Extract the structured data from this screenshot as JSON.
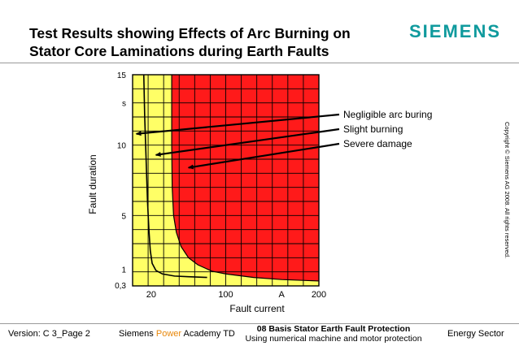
{
  "header": {
    "title_line1": "Test Results showing Effects of Arc Burning on",
    "title_line2": "Stator Core Laminations during Earth Faults",
    "logo": "SIEMENS",
    "logo_color": "#0f9a9d"
  },
  "chart_data": {
    "type": "area",
    "xlabel": "Fault current",
    "ylabel": "Fault duration",
    "xlim": [
      0,
      200
    ],
    "ylim": [
      0,
      15
    ],
    "x_ticks": [
      {
        "label": "20",
        "value": 20
      },
      {
        "label": "100",
        "value": 100
      },
      {
        "label": "A",
        "value": 160
      },
      {
        "label": "200",
        "value": 200
      }
    ],
    "y_ticks": [
      {
        "label": "15",
        "value": 15
      },
      {
        "label": "s",
        "value": 13
      },
      {
        "label": "10",
        "value": 10
      },
      {
        "label": "5",
        "value": 5
      },
      {
        "label": "1",
        "value": 1
      },
      {
        "label": "0,3",
        "value": 0.3
      }
    ],
    "grid": true,
    "regions": [
      {
        "name": "Negligible arc buring",
        "color": "#ffff66"
      },
      {
        "name": "Slight burning",
        "color": "#ffff66"
      },
      {
        "name": "Severe damage",
        "color": "#ff1a1a"
      }
    ],
    "curves": [
      {
        "name": "Negligible arc buring",
        "points": [
          [
            12,
            15
          ],
          [
            13,
            12
          ],
          [
            14,
            10
          ],
          [
            15,
            8
          ],
          [
            16,
            6
          ],
          [
            17.5,
            4
          ],
          [
            19,
            2.5
          ],
          [
            21,
            1.6
          ],
          [
            25,
            1.1
          ],
          [
            32,
            0.85
          ],
          [
            45,
            0.7
          ],
          [
            60,
            0.65
          ],
          [
            80,
            0.6
          ]
        ]
      },
      {
        "name": "Severe damage",
        "points": [
          [
            42,
            15
          ],
          [
            42,
            10
          ],
          [
            42.5,
            7
          ],
          [
            44,
            5
          ],
          [
            47,
            3.8
          ],
          [
            52,
            2.8
          ],
          [
            60,
            2.0
          ],
          [
            70,
            1.5
          ],
          [
            85,
            1.05
          ],
          [
            100,
            0.85
          ],
          [
            130,
            0.6
          ],
          [
            160,
            0.45
          ],
          [
            200,
            0.35
          ]
        ]
      }
    ],
    "annotations": [
      {
        "text": "Negligible arc buring",
        "target": [
          4,
          10.8
        ]
      },
      {
        "text": "Slight burning",
        "target": [
          25,
          9.3
        ]
      },
      {
        "text": "Severe damage",
        "target": [
          60,
          8.4
        ]
      }
    ]
  },
  "copyright": "Copyright © Siemens AG 2008. All rights reserved.",
  "footer": {
    "version": "Version: C 3_Page 2",
    "academy_prefix": "Siemens ",
    "academy_power": "Power",
    "academy_suffix": " Academy TD",
    "course_title": "08 Basis Stator Earth Fault Protection",
    "course_subtitle": "Using numerical machine and motor protection",
    "sector": "Energy Sector",
    "power_color": "#e8870a"
  }
}
